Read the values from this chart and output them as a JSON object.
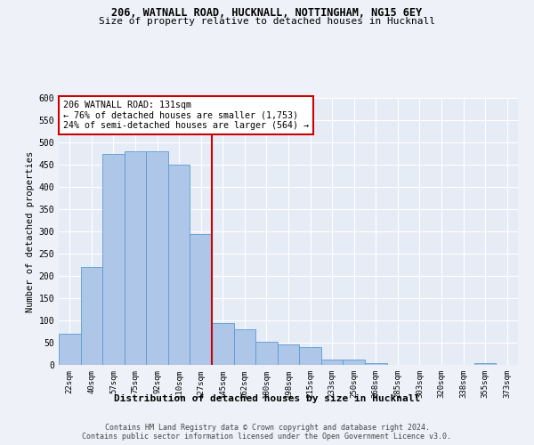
{
  "title_line1": "206, WATNALL ROAD, HUCKNALL, NOTTINGHAM, NG15 6EY",
  "title_line2": "Size of property relative to detached houses in Hucknall",
  "xlabel": "Distribution of detached houses by size in Hucknall",
  "ylabel": "Number of detached properties",
  "bin_labels": [
    "22sqm",
    "40sqm",
    "57sqm",
    "75sqm",
    "92sqm",
    "110sqm",
    "127sqm",
    "145sqm",
    "162sqm",
    "180sqm",
    "198sqm",
    "215sqm",
    "233sqm",
    "250sqm",
    "268sqm",
    "285sqm",
    "303sqm",
    "320sqm",
    "338sqm",
    "355sqm",
    "373sqm"
  ],
  "bar_values": [
    70,
    220,
    475,
    480,
    480,
    450,
    295,
    95,
    80,
    53,
    46,
    40,
    12,
    12,
    5,
    0,
    0,
    0,
    0,
    5,
    0
  ],
  "bar_color": "#aec6e8",
  "bar_edge_color": "#5b9bd5",
  "vline_x_index": 6,
  "vline_color": "#cc0000",
  "annotation_text": "206 WATNALL ROAD: 131sqm\n← 76% of detached houses are smaller (1,753)\n24% of semi-detached houses are larger (564) →",
  "annotation_box_color": "#ffffff",
  "annotation_box_edge_color": "#cc0000",
  "ylim": [
    0,
    600
  ],
  "yticks": [
    0,
    50,
    100,
    150,
    200,
    250,
    300,
    350,
    400,
    450,
    500,
    550,
    600
  ],
  "footer_line1": "Contains HM Land Registry data © Crown copyright and database right 2024.",
  "footer_line2": "Contains public sector information licensed under the Open Government Licence v3.0.",
  "background_color": "#eef2f8",
  "plot_bg_color": "#e6ecf6"
}
